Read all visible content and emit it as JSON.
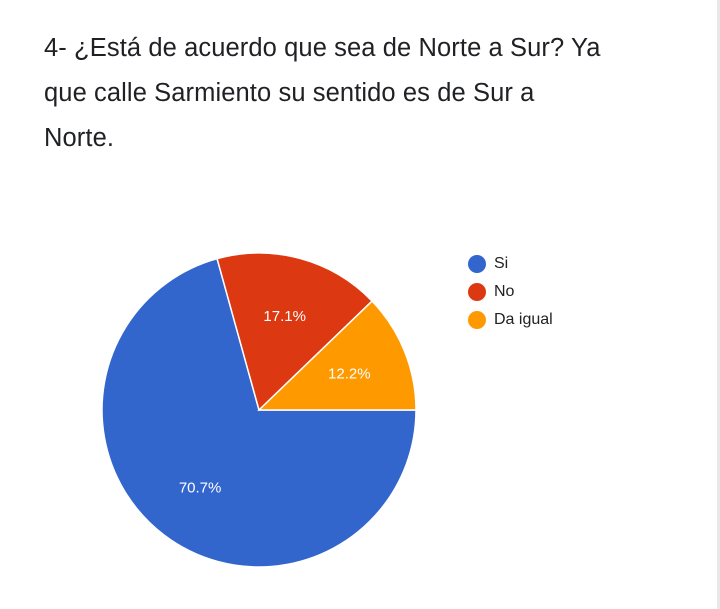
{
  "question": {
    "title": "4- ¿Está de acuerdo que sea de Norte a Sur? Ya que calle Sarmiento su sentido es de Sur a Norte."
  },
  "chart_data": {
    "type": "pie",
    "slices": [
      {
        "name": "Si",
        "value": 70.7,
        "label": "70.7%",
        "color": "#3366cc"
      },
      {
        "name": "No",
        "value": 17.1,
        "label": "17.1%",
        "color": "#dc3912"
      },
      {
        "name": "Da igual",
        "value": 12.2,
        "label": "12.2%",
        "color": "#ff9900"
      }
    ],
    "legend_position": "right",
    "start_angle_deg": 0,
    "direction": "clockwise"
  },
  "legend": {
    "items": [
      {
        "label": "Si",
        "color": "#3366cc"
      },
      {
        "label": "No",
        "color": "#dc3912"
      },
      {
        "label": "Da igual",
        "color": "#ff9900"
      }
    ]
  }
}
